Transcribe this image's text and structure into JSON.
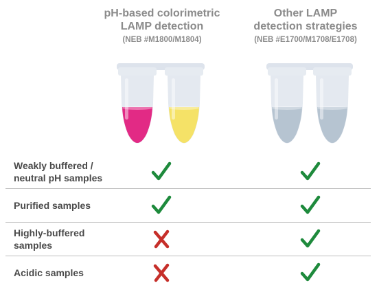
{
  "columns": [
    {
      "title_line1": "pH-based colorimetric",
      "title_line2": "LAMP detection",
      "catalog": "(NEB #M1800/M1804)",
      "tube_colors": [
        "#e2207e",
        "#f6e15f"
      ]
    },
    {
      "title_line1": "Other LAMP",
      "title_line2": "detection strategies",
      "catalog": "(NEB #E1700/M1708/E1708)",
      "tube_colors": [
        "#aebdcb",
        "#aebdcb"
      ]
    }
  ],
  "rows": [
    {
      "label_line1": "Weakly buffered /",
      "label_line2": "neutral pH samples",
      "left": "check",
      "right": "check"
    },
    {
      "label_line1": "Purified samples",
      "label_line2": "",
      "left": "check",
      "right": "check"
    },
    {
      "label_line1": "Highly-buffered",
      "label_line2": "samples",
      "left": "cross",
      "right": "check"
    },
    {
      "label_line1": "Acidic samples",
      "label_line2": "",
      "left": "cross",
      "right": "check"
    }
  ],
  "colors": {
    "check": "#1e8a3c",
    "cross": "#c62f2a",
    "tube_plastic": "#dde3ec"
  }
}
